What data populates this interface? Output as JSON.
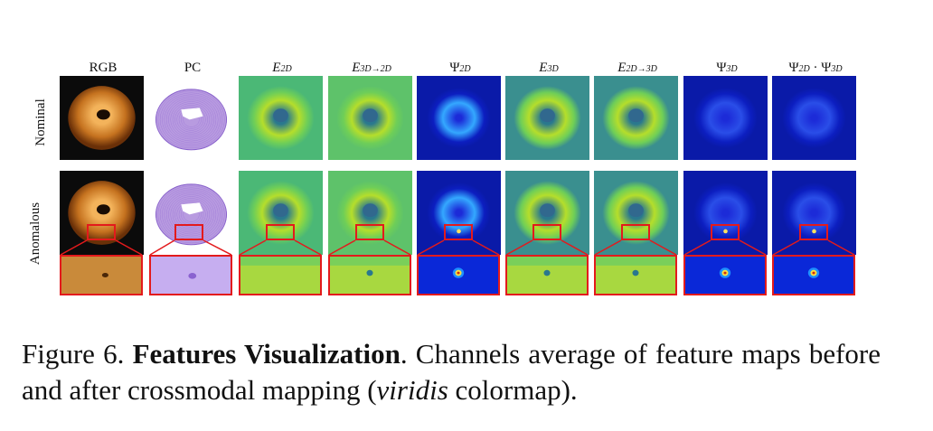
{
  "figure": {
    "columns": [
      {
        "id": "rgb",
        "main": "RGB",
        "sub": "",
        "style": "plain"
      },
      {
        "id": "pc",
        "main": "PC",
        "sub": "",
        "style": "plain"
      },
      {
        "id": "e2d",
        "main": "E",
        "sub": "2D",
        "style": "italic"
      },
      {
        "id": "e3d2d",
        "main": "E",
        "sub": "3D→2D",
        "style": "italic"
      },
      {
        "id": "psi2d",
        "main": "Ψ",
        "sub": "2D",
        "style": "plain"
      },
      {
        "id": "e3d",
        "main": "E",
        "sub": "3D",
        "style": "italic"
      },
      {
        "id": "e2d3d",
        "main": "E",
        "sub": "2D→3D",
        "style": "italic"
      },
      {
        "id": "psi3d",
        "main": "Ψ",
        "sub": "3D",
        "style": "plain"
      },
      {
        "id": "psiprod",
        "main": "Ψ",
        "sub": "2D",
        "main2": " · Ψ",
        "sub2": "3D",
        "style": "plain"
      }
    ],
    "rows": {
      "nominal": "Nominal",
      "anomalous": "Anomalous"
    },
    "colors": {
      "roi_border": "#e31a1c",
      "viridis_bg": "#3cbb75",
      "jet_bg": "#0a1eb4"
    }
  },
  "caption": {
    "label": "Figure 6.",
    "title": "Features Visualization",
    "text_before_italic": ". Channels average of feature maps before and after crossmodal mapping (",
    "italic": "viridis",
    "text_after_italic": " colormap)."
  }
}
